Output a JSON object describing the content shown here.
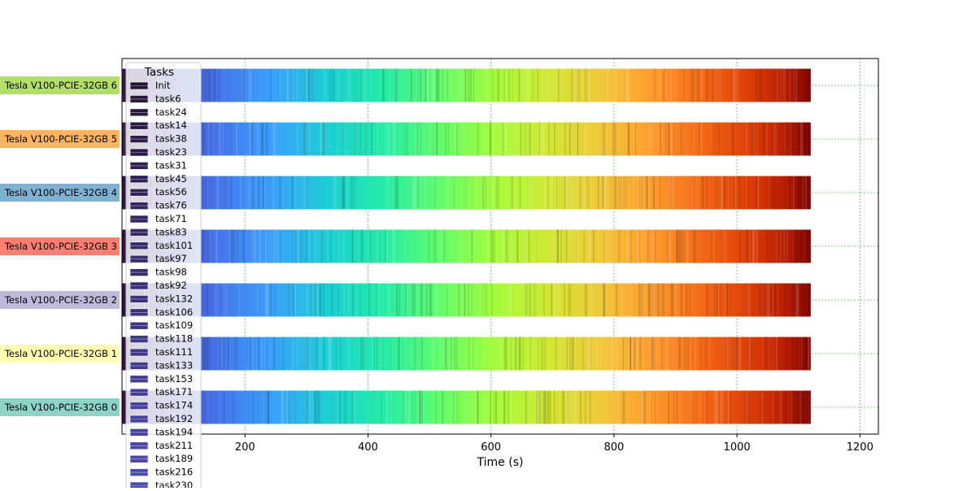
{
  "chart_data": {
    "type": "gantt",
    "xlabel": "Time (s)",
    "xlim": [
      0,
      1230
    ],
    "x_ticks": [
      200,
      400,
      600,
      800,
      1000,
      1200
    ],
    "grid": true,
    "legend": {
      "title": "Tasks",
      "placement": "upper-left",
      "entries": [
        "Init",
        "task6",
        "task24",
        "task14",
        "task38",
        "task23",
        "task31",
        "task45",
        "task56",
        "task76",
        "task71",
        "task83",
        "task101",
        "task97",
        "task98",
        "task92",
        "task132",
        "task106",
        "task109",
        "task118",
        "task111",
        "task133",
        "task153",
        "task171",
        "task174",
        "task192",
        "task194",
        "task211",
        "task189",
        "task216",
        "task230"
      ]
    },
    "rows": [
      {
        "label": "Tesla V100-PCIE-32GB 6",
        "color": "#b3de69"
      },
      {
        "label": "Tesla V100-PCIE-32GB 5",
        "color": "#fdb462"
      },
      {
        "label": "Tesla V100-PCIE-32GB 4",
        "color": "#80b1d3"
      },
      {
        "label": "Tesla V100-PCIE-32GB 3",
        "color": "#fb8072"
      },
      {
        "label": "Tesla V100-PCIE-32GB 2",
        "color": "#bebada"
      },
      {
        "label": "Tesla V100-PCIE-32GB 1",
        "color": "#ffffb3"
      },
      {
        "label": "Tesla V100-PCIE-32GB 0",
        "color": "#8dd3c7"
      }
    ],
    "bar_start": 0,
    "bar_end": 1120,
    "colormap": "turbo"
  }
}
